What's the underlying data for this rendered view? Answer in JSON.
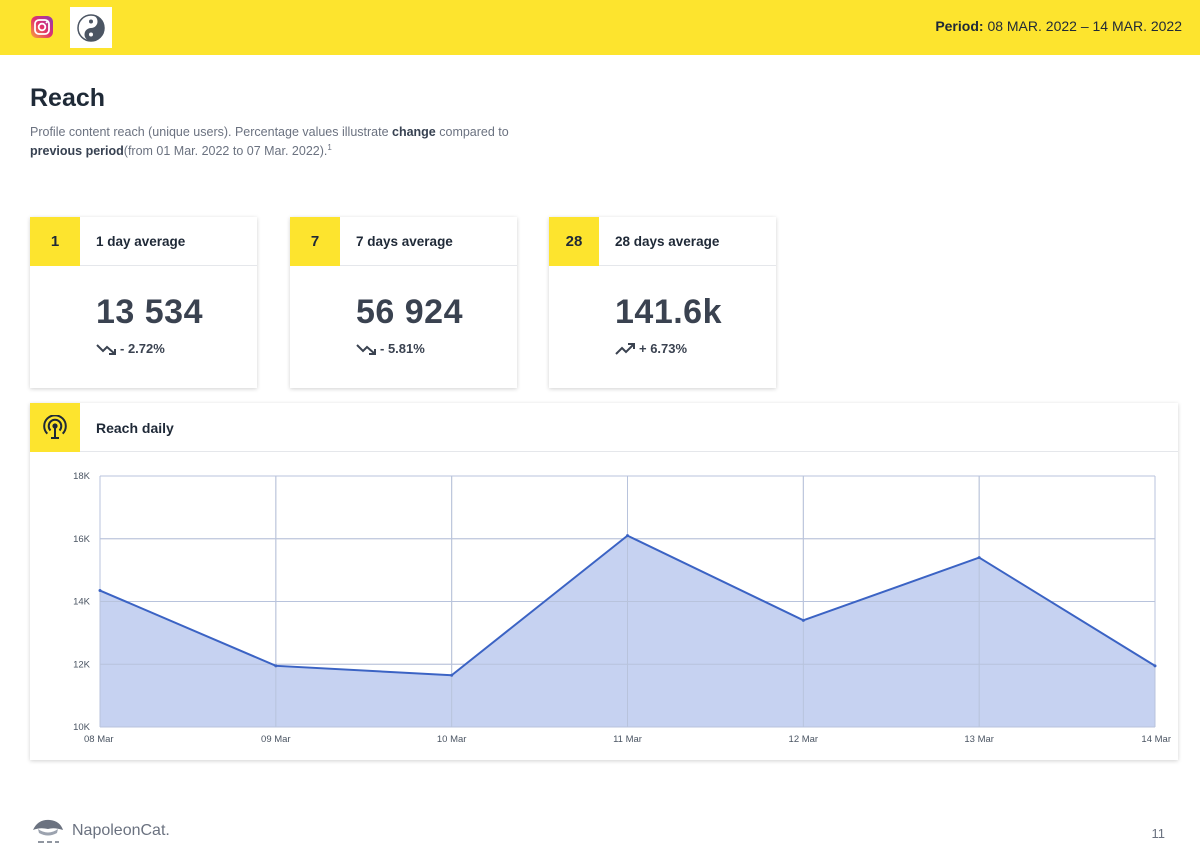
{
  "header": {
    "icons": [
      "instagram-icon",
      "yin-yang-avatar-icon"
    ],
    "period_label": "Period:",
    "period_value": "08 MAR. 2022 – 14 MAR. 2022",
    "color": "#fde42e"
  },
  "page": {
    "title": "Reach",
    "desc_part1": "Profile content reach (unique users). Percentage values illustrate ",
    "desc_bold1": "change",
    "desc_part2": " compared to ",
    "desc_bold2": "previous period",
    "desc_part3": "(from 01 Mar. 2022 to 07 Mar. 2022).",
    "desc_sup": "1"
  },
  "cards": [
    {
      "num": "1",
      "label": "1 day average",
      "value": "13 534",
      "change": "- 2.72%",
      "trend": "down"
    },
    {
      "num": "7",
      "label": "7 days average",
      "value": "56 924",
      "change": "- 5.81%",
      "trend": "down"
    },
    {
      "num": "28",
      "label": "28 days average",
      "value": "141.6k",
      "change": "+ 6.73%",
      "trend": "up"
    }
  ],
  "chart_card": {
    "title": "Reach daily",
    "icon": "reach-broadcast-icon"
  },
  "chart_data": {
    "type": "area",
    "title": "Reach daily",
    "categories": [
      "08 Mar",
      "09 Mar",
      "10 Mar",
      "11 Mar",
      "12 Mar",
      "13 Mar",
      "14 Mar"
    ],
    "series": [
      {
        "name": "Reach",
        "values": [
          14350,
          11950,
          11650,
          16100,
          13400,
          15400,
          11950
        ]
      }
    ],
    "ylim": [
      10000,
      18000
    ],
    "yticks": [
      10000,
      12000,
      14000,
      16000,
      18000
    ],
    "ytick_labels": [
      "10K",
      "12K",
      "14K",
      "16K",
      "18K"
    ],
    "grid": true,
    "line_color": "#3b63c4",
    "fill_color": "#c3d0f0"
  },
  "footer": {
    "brand": "NapoleonCat.",
    "page_number": "11"
  }
}
